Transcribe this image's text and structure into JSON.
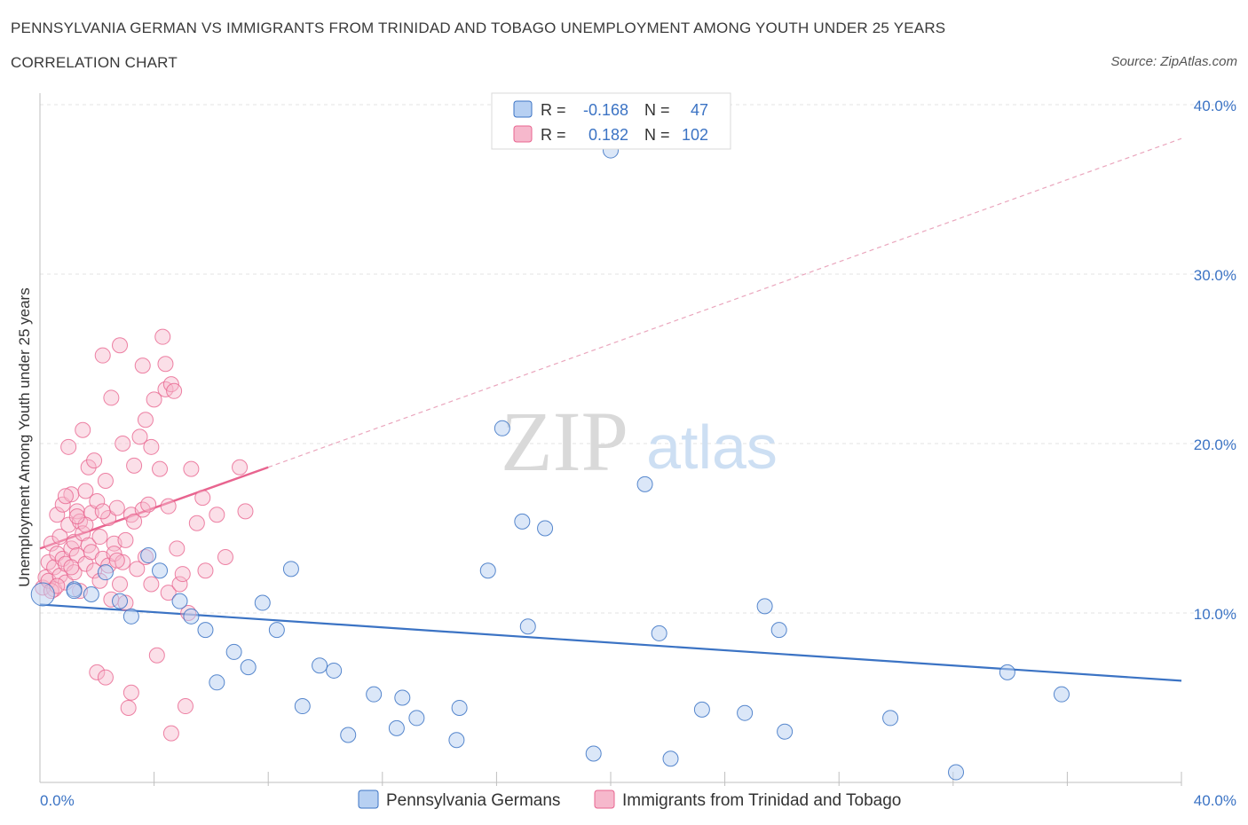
{
  "header": {
    "title": "PENNSYLVANIA GERMAN VS IMMIGRANTS FROM TRINIDAD AND TOBAGO UNEMPLOYMENT AMONG YOUTH UNDER 25 YEARS",
    "subtitle": "CORRELATION CHART",
    "source": "Source: ZipAtlas.com"
  },
  "legend_top": {
    "series1": {
      "r_label": "R =",
      "r_value": "-0.168",
      "n_label": "N =",
      "n_value": "47"
    },
    "series2": {
      "r_label": "R =",
      "r_value": "0.182",
      "n_label": "N =",
      "n_value": "102"
    }
  },
  "watermark": {
    "zip": "ZIP",
    "atlas": "atlas"
  },
  "colors": {
    "blue": "#3b73c4",
    "blue_fill": "#b7d0f2",
    "pink": "#e8648f",
    "pink_fill": "#f6b8cc",
    "grid": "#e3e3e3"
  },
  "chart_data": {
    "type": "scatter",
    "title": "PENNSYLVANIA GERMAN VS IMMIGRANTS FROM TRINIDAD AND TOBAGO UNEMPLOYMENT AMONG YOUTH UNDER 25 YEARS",
    "xlabel": "",
    "ylabel": "Unemployment Among Youth under 25 years",
    "xlim": [
      0,
      40
    ],
    "ylim": [
      0,
      40
    ],
    "x_tick_labels": {
      "min": "0.0%",
      "max": "40.0%"
    },
    "y_ticks": [
      10,
      20,
      30,
      40
    ],
    "y_tick_labels": [
      "10.0%",
      "20.0%",
      "30.0%",
      "40.0%"
    ],
    "grid": true,
    "series": [
      {
        "name": "Pennsylvania Germans",
        "color": "#3b73c4",
        "trend": {
          "x": [
            0,
            40
          ],
          "y": [
            10.5,
            6.0
          ],
          "style": "solid"
        },
        "points": [
          [
            0.1,
            11.1
          ],
          [
            1.2,
            11.4
          ],
          [
            1.8,
            11.1
          ],
          [
            2.3,
            12.4
          ],
          [
            2.8,
            10.7
          ],
          [
            3.2,
            9.8
          ],
          [
            3.8,
            13.4
          ],
          [
            4.2,
            12.5
          ],
          [
            4.9,
            10.7
          ],
          [
            5.3,
            9.8
          ],
          [
            5.8,
            9.0
          ],
          [
            6.2,
            5.9
          ],
          [
            6.8,
            7.7
          ],
          [
            7.3,
            6.8
          ],
          [
            7.8,
            10.6
          ],
          [
            8.3,
            9.0
          ],
          [
            8.8,
            12.6
          ],
          [
            9.2,
            4.5
          ],
          [
            9.8,
            6.9
          ],
          [
            10.3,
            6.6
          ],
          [
            10.8,
            2.8
          ],
          [
            11.7,
            5.2
          ],
          [
            12.5,
            3.2
          ],
          [
            12.7,
            5.0
          ],
          [
            13.2,
            3.8
          ],
          [
            14.6,
            2.5
          ],
          [
            14.7,
            4.4
          ],
          [
            15.7,
            12.5
          ],
          [
            16.2,
            20.9
          ],
          [
            16.9,
            15.4
          ],
          [
            17.1,
            9.2
          ],
          [
            17.7,
            15.0
          ],
          [
            19.4,
            1.7
          ],
          [
            20.0,
            37.3
          ],
          [
            21.2,
            17.6
          ],
          [
            21.7,
            8.8
          ],
          [
            22.1,
            1.4
          ],
          [
            23.2,
            4.3
          ],
          [
            24.7,
            4.1
          ],
          [
            25.4,
            10.4
          ],
          [
            25.9,
            9.0
          ],
          [
            26.1,
            3.0
          ],
          [
            29.8,
            3.8
          ],
          [
            32.1,
            0.6
          ],
          [
            33.9,
            6.5
          ],
          [
            35.8,
            5.2
          ],
          [
            1.2,
            11.3
          ]
        ]
      },
      {
        "name": "Immigrants from Trinidad and Tobago",
        "color": "#e8648f",
        "trend": {
          "x": [
            0,
            8
          ],
          "y": [
            13.8,
            18.6
          ],
          "style": "solid",
          "extended": {
            "x": [
              8,
              40
            ],
            "y": [
              18.6,
              38.0
            ],
            "style": "dashed"
          }
        },
        "points": [
          [
            0.1,
            11.5
          ],
          [
            0.2,
            12.1
          ],
          [
            0.3,
            13.0
          ],
          [
            0.3,
            11.9
          ],
          [
            0.4,
            14.1
          ],
          [
            0.5,
            12.7
          ],
          [
            0.5,
            11.4
          ],
          [
            0.6,
            13.5
          ],
          [
            0.6,
            15.8
          ],
          [
            0.7,
            12.2
          ],
          [
            0.7,
            14.5
          ],
          [
            0.8,
            13.2
          ],
          [
            0.8,
            16.4
          ],
          [
            0.9,
            11.8
          ],
          [
            0.9,
            12.9
          ],
          [
            1.0,
            15.2
          ],
          [
            1.0,
            19.8
          ],
          [
            1.1,
            13.8
          ],
          [
            1.1,
            17.0
          ],
          [
            1.2,
            14.2
          ],
          [
            1.2,
            12.4
          ],
          [
            1.3,
            16.0
          ],
          [
            1.3,
            13.4
          ],
          [
            1.4,
            11.3
          ],
          [
            1.4,
            15.4
          ],
          [
            1.5,
            14.7
          ],
          [
            1.5,
            20.8
          ],
          [
            1.6,
            12.9
          ],
          [
            1.6,
            17.2
          ],
          [
            1.7,
            14.0
          ],
          [
            1.7,
            18.6
          ],
          [
            1.8,
            13.6
          ],
          [
            1.8,
            15.9
          ],
          [
            1.9,
            12.5
          ],
          [
            1.9,
            19.0
          ],
          [
            2.0,
            16.6
          ],
          [
            2.0,
            6.5
          ],
          [
            2.1,
            14.5
          ],
          [
            2.1,
            11.9
          ],
          [
            2.2,
            13.2
          ],
          [
            2.2,
            25.2
          ],
          [
            2.3,
            17.8
          ],
          [
            2.3,
            6.2
          ],
          [
            2.4,
            15.6
          ],
          [
            2.4,
            12.8
          ],
          [
            2.5,
            22.7
          ],
          [
            2.5,
            10.8
          ],
          [
            2.6,
            14.1
          ],
          [
            2.6,
            13.5
          ],
          [
            2.7,
            16.2
          ],
          [
            2.8,
            25.8
          ],
          [
            2.8,
            11.7
          ],
          [
            2.9,
            20.0
          ],
          [
            2.9,
            13.0
          ],
          [
            3.0,
            10.6
          ],
          [
            3.1,
            4.4
          ],
          [
            3.2,
            15.8
          ],
          [
            3.2,
            5.3
          ],
          [
            3.3,
            18.7
          ],
          [
            3.4,
            12.6
          ],
          [
            3.5,
            20.4
          ],
          [
            3.6,
            16.1
          ],
          [
            3.6,
            24.6
          ],
          [
            3.7,
            21.4
          ],
          [
            3.7,
            13.3
          ],
          [
            3.8,
            16.4
          ],
          [
            3.9,
            11.7
          ],
          [
            3.9,
            19.8
          ],
          [
            4.0,
            22.6
          ],
          [
            4.1,
            7.5
          ],
          [
            4.2,
            18.5
          ],
          [
            4.3,
            26.3
          ],
          [
            4.4,
            24.7
          ],
          [
            4.4,
            23.2
          ],
          [
            4.5,
            11.2
          ],
          [
            4.5,
            16.3
          ],
          [
            4.6,
            23.5
          ],
          [
            4.6,
            2.9
          ],
          [
            4.7,
            23.1
          ],
          [
            4.8,
            13.8
          ],
          [
            4.9,
            11.7
          ],
          [
            5.0,
            12.3
          ],
          [
            5.1,
            4.5
          ],
          [
            5.2,
            10.0
          ],
          [
            5.3,
            18.5
          ],
          [
            5.5,
            15.3
          ],
          [
            5.7,
            16.8
          ],
          [
            5.8,
            12.5
          ],
          [
            6.2,
            15.8
          ],
          [
            6.5,
            13.3
          ],
          [
            7.0,
            18.6
          ],
          [
            7.2,
            16.0
          ],
          [
            1.1,
            12.7
          ],
          [
            1.6,
            15.2
          ],
          [
            2.7,
            13.1
          ],
          [
            3.3,
            15.4
          ],
          [
            0.4,
            11.3
          ],
          [
            0.9,
            16.9
          ],
          [
            2.2,
            16.0
          ],
          [
            3.0,
            14.3
          ],
          [
            1.3,
            15.7
          ],
          [
            0.6,
            11.6
          ]
        ]
      }
    ]
  },
  "bottom_legend": {
    "series1": "Pennsylvania Germans",
    "series2": "Immigrants from Trinidad and Tobago"
  }
}
